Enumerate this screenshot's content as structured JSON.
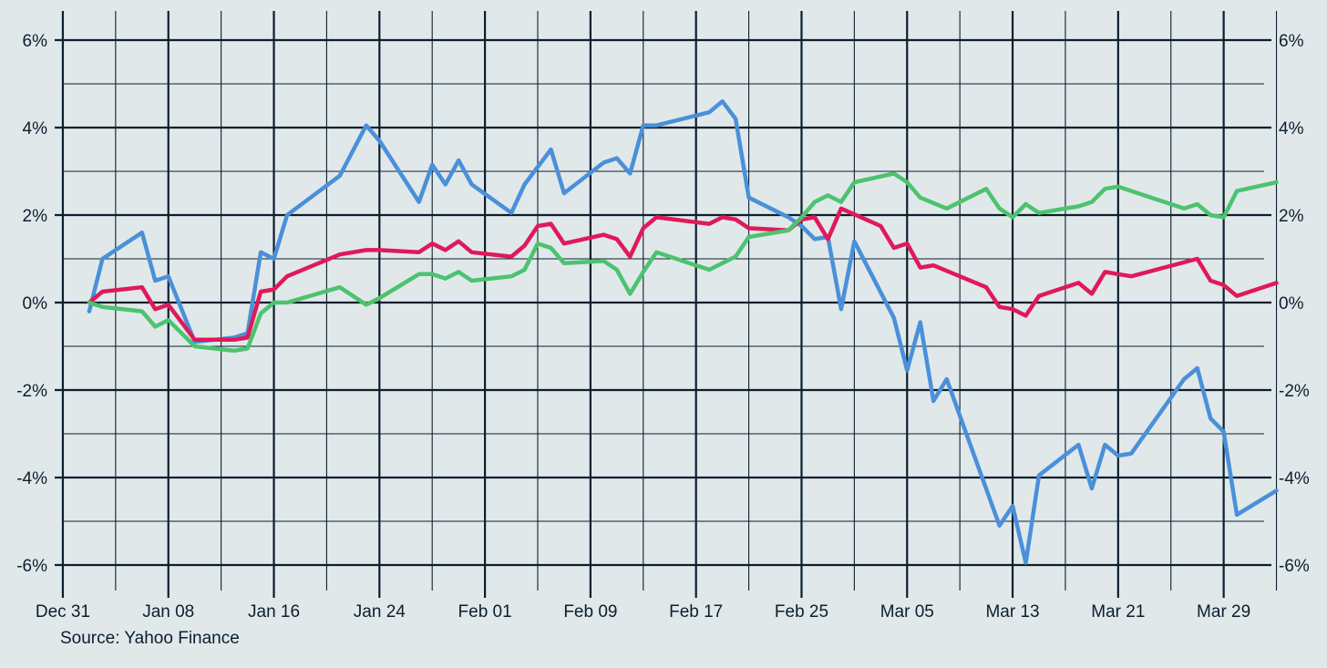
{
  "chart_data": {
    "type": "line",
    "source": "Source: Yahoo Finance",
    "y_ticks": [
      "6%",
      "4%",
      "2%",
      "0%",
      "-2%",
      "-4%",
      "-6%"
    ],
    "y_tick_values": [
      6,
      4,
      2,
      0,
      -2,
      -4,
      -6
    ],
    "x_ticks": [
      "Dec 31",
      "Jan 08",
      "Jan 16",
      "Jan 24",
      "Feb 01",
      "Feb 09",
      "Feb 17",
      "Feb 25",
      "Mar 05",
      "Mar 13",
      "Mar 21",
      "Mar 29"
    ],
    "x_tick_dates": [
      "2024-12-31",
      "2025-01-08",
      "2025-01-16",
      "2025-01-24",
      "2025-02-01",
      "2025-02-09",
      "2025-02-17",
      "2025-02-25",
      "2025-03-05",
      "2025-03-13",
      "2025-03-21",
      "2025-03-29"
    ],
    "x_range": [
      "2024-12-29",
      "2025-04-03"
    ],
    "ylim": [
      -6.8,
      6.6
    ],
    "grid": true,
    "series": [
      {
        "color": "#4a90d9",
        "points": [
          [
            "2025-01-02",
            -0.2
          ],
          [
            "2025-01-03",
            1.0
          ],
          [
            "2025-01-06",
            1.6
          ],
          [
            "2025-01-07",
            0.5
          ],
          [
            "2025-01-08",
            0.6
          ],
          [
            "2025-01-10",
            -0.9
          ],
          [
            "2025-01-13",
            -0.8
          ],
          [
            "2025-01-14",
            -0.7
          ],
          [
            "2025-01-15",
            1.15
          ],
          [
            "2025-01-16",
            1.0
          ],
          [
            "2025-01-17",
            2.0
          ],
          [
            "2025-01-21",
            2.9
          ],
          [
            "2025-01-23",
            4.05
          ],
          [
            "2025-01-24",
            3.7
          ],
          [
            "2025-01-27",
            2.3
          ],
          [
            "2025-01-28",
            3.15
          ],
          [
            "2025-01-29",
            2.7
          ],
          [
            "2025-01-30",
            3.25
          ],
          [
            "2025-01-31",
            2.7
          ],
          [
            "2025-02-03",
            2.05
          ],
          [
            "2025-02-04",
            2.7
          ],
          [
            "2025-02-05",
            3.1
          ],
          [
            "2025-02-06",
            3.5
          ],
          [
            "2025-02-07",
            2.5
          ],
          [
            "2025-02-10",
            3.2
          ],
          [
            "2025-02-11",
            3.3
          ],
          [
            "2025-02-12",
            2.95
          ],
          [
            "2025-02-13",
            4.05
          ],
          [
            "2025-02-14",
            4.05
          ],
          [
            "2025-02-18",
            4.35
          ],
          [
            "2025-02-19",
            4.6
          ],
          [
            "2025-02-20",
            4.2
          ],
          [
            "2025-02-21",
            2.4
          ],
          [
            "2025-02-24",
            1.95
          ],
          [
            "2025-02-25",
            1.75
          ],
          [
            "2025-02-26",
            1.45
          ],
          [
            "2025-02-27",
            1.5
          ],
          [
            "2025-02-28",
            -0.15
          ],
          [
            "2025-03-01",
            1.4
          ],
          [
            "2025-03-04",
            -0.35
          ],
          [
            "2025-03-05",
            -1.55
          ],
          [
            "2025-03-06",
            -0.45
          ],
          [
            "2025-03-07",
            -2.25
          ],
          [
            "2025-03-08",
            -1.75
          ],
          [
            "2025-03-12",
            -5.1
          ],
          [
            "2025-03-13",
            -4.65
          ],
          [
            "2025-03-14",
            -5.95
          ],
          [
            "2025-03-15",
            -3.95
          ],
          [
            "2025-03-18",
            -3.25
          ],
          [
            "2025-03-19",
            -4.25
          ],
          [
            "2025-03-20",
            -3.25
          ],
          [
            "2025-03-21",
            -3.5
          ],
          [
            "2025-03-22",
            -3.45
          ],
          [
            "2025-03-26",
            -1.75
          ],
          [
            "2025-03-27",
            -1.5
          ],
          [
            "2025-03-28",
            -2.65
          ],
          [
            "2025-03-29",
            -2.95
          ],
          [
            "2025-03-30",
            -4.85
          ],
          [
            "2025-04-02",
            -4.3
          ]
        ]
      },
      {
        "color": "#e0195a",
        "points": [
          [
            "2025-01-02",
            0.0
          ],
          [
            "2025-01-03",
            0.25
          ],
          [
            "2025-01-06",
            0.35
          ],
          [
            "2025-01-07",
            -0.15
          ],
          [
            "2025-01-08",
            -0.05
          ],
          [
            "2025-01-10",
            -0.85
          ],
          [
            "2025-01-13",
            -0.85
          ],
          [
            "2025-01-14",
            -0.8
          ],
          [
            "2025-01-15",
            0.25
          ],
          [
            "2025-01-16",
            0.3
          ],
          [
            "2025-01-17",
            0.6
          ],
          [
            "2025-01-21",
            1.1
          ],
          [
            "2025-01-23",
            1.2
          ],
          [
            "2025-01-24",
            1.2
          ],
          [
            "2025-01-27",
            1.15
          ],
          [
            "2025-01-28",
            1.35
          ],
          [
            "2025-01-29",
            1.2
          ],
          [
            "2025-01-30",
            1.4
          ],
          [
            "2025-01-31",
            1.15
          ],
          [
            "2025-02-03",
            1.05
          ],
          [
            "2025-02-04",
            1.3
          ],
          [
            "2025-02-05",
            1.75
          ],
          [
            "2025-02-06",
            1.8
          ],
          [
            "2025-02-07",
            1.35
          ],
          [
            "2025-02-10",
            1.55
          ],
          [
            "2025-02-11",
            1.45
          ],
          [
            "2025-02-12",
            1.05
          ],
          [
            "2025-02-13",
            1.7
          ],
          [
            "2025-02-14",
            1.95
          ],
          [
            "2025-02-18",
            1.8
          ],
          [
            "2025-02-19",
            1.95
          ],
          [
            "2025-02-20",
            1.9
          ],
          [
            "2025-02-21",
            1.7
          ],
          [
            "2025-02-24",
            1.65
          ],
          [
            "2025-02-25",
            1.9
          ],
          [
            "2025-02-26",
            1.95
          ],
          [
            "2025-02-27",
            1.45
          ],
          [
            "2025-02-28",
            2.15
          ],
          [
            "2025-03-03",
            1.75
          ],
          [
            "2025-03-04",
            1.25
          ],
          [
            "2025-03-05",
            1.35
          ],
          [
            "2025-03-06",
            0.8
          ],
          [
            "2025-03-07",
            0.85
          ],
          [
            "2025-03-11",
            0.35
          ],
          [
            "2025-03-12",
            -0.1
          ],
          [
            "2025-03-13",
            -0.15
          ],
          [
            "2025-03-14",
            -0.3
          ],
          [
            "2025-03-15",
            0.15
          ],
          [
            "2025-03-18",
            0.45
          ],
          [
            "2025-03-19",
            0.2
          ],
          [
            "2025-03-20",
            0.7
          ],
          [
            "2025-03-21",
            0.65
          ],
          [
            "2025-03-22",
            0.6
          ],
          [
            "2025-03-27",
            1.0
          ],
          [
            "2025-03-28",
            0.5
          ],
          [
            "2025-03-29",
            0.4
          ],
          [
            "2025-03-30",
            0.15
          ],
          [
            "2025-04-02",
            0.45
          ]
        ]
      },
      {
        "color": "#4cc36e",
        "points": [
          [
            "2025-01-02",
            0.0
          ],
          [
            "2025-01-03",
            -0.1
          ],
          [
            "2025-01-06",
            -0.2
          ],
          [
            "2025-01-07",
            -0.55
          ],
          [
            "2025-01-08",
            -0.4
          ],
          [
            "2025-01-10",
            -1.0
          ],
          [
            "2025-01-13",
            -1.1
          ],
          [
            "2025-01-14",
            -1.05
          ],
          [
            "2025-01-15",
            -0.25
          ],
          [
            "2025-01-16",
            0.0
          ],
          [
            "2025-01-17",
            0.0
          ],
          [
            "2025-01-21",
            0.35
          ],
          [
            "2025-01-23",
            -0.05
          ],
          [
            "2025-01-24",
            0.1
          ],
          [
            "2025-01-27",
            0.65
          ],
          [
            "2025-01-28",
            0.65
          ],
          [
            "2025-01-29",
            0.55
          ],
          [
            "2025-01-30",
            0.7
          ],
          [
            "2025-01-31",
            0.5
          ],
          [
            "2025-02-03",
            0.6
          ],
          [
            "2025-02-04",
            0.75
          ],
          [
            "2025-02-05",
            1.35
          ],
          [
            "2025-02-06",
            1.25
          ],
          [
            "2025-02-07",
            0.9
          ],
          [
            "2025-02-10",
            0.95
          ],
          [
            "2025-02-11",
            0.75
          ],
          [
            "2025-02-12",
            0.2
          ],
          [
            "2025-02-13",
            0.7
          ],
          [
            "2025-02-14",
            1.15
          ],
          [
            "2025-02-18",
            0.75
          ],
          [
            "2025-02-19",
            0.9
          ],
          [
            "2025-02-20",
            1.05
          ],
          [
            "2025-02-21",
            1.5
          ],
          [
            "2025-02-24",
            1.65
          ],
          [
            "2025-02-25",
            1.95
          ],
          [
            "2025-02-26",
            2.3
          ],
          [
            "2025-02-27",
            2.45
          ],
          [
            "2025-02-28",
            2.3
          ],
          [
            "2025-03-01",
            2.75
          ],
          [
            "2025-03-04",
            2.95
          ],
          [
            "2025-03-05",
            2.75
          ],
          [
            "2025-03-06",
            2.4
          ],
          [
            "2025-03-08",
            2.15
          ],
          [
            "2025-03-11",
            2.6
          ],
          [
            "2025-03-12",
            2.15
          ],
          [
            "2025-03-13",
            1.95
          ],
          [
            "2025-03-14",
            2.25
          ],
          [
            "2025-03-15",
            2.05
          ],
          [
            "2025-03-18",
            2.2
          ],
          [
            "2025-03-19",
            2.3
          ],
          [
            "2025-03-20",
            2.6
          ],
          [
            "2025-03-21",
            2.65
          ],
          [
            "2025-03-22",
            2.55
          ],
          [
            "2025-03-26",
            2.15
          ],
          [
            "2025-03-27",
            2.25
          ],
          [
            "2025-03-28",
            2.0
          ],
          [
            "2025-03-29",
            1.95
          ],
          [
            "2025-03-30",
            2.55
          ],
          [
            "2025-04-02",
            2.75
          ]
        ]
      }
    ]
  }
}
